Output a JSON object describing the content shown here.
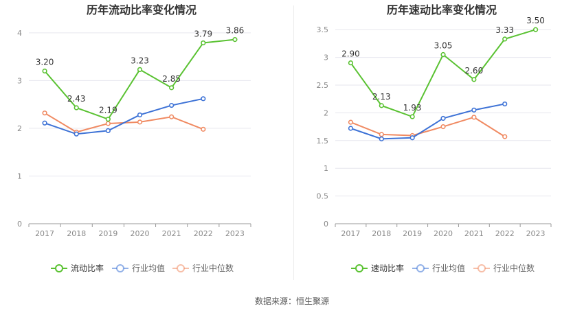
{
  "source": "数据来源：恒生聚源",
  "colors": {
    "main": "#5ac232",
    "industry_avg": "#3d72d6",
    "industry_median": "#f08a62",
    "grid": "#e6e6ee",
    "axis_text": "#888888",
    "title": "#333333"
  },
  "chart_data": [
    {
      "type": "line",
      "title": "历年流动比率变化情况",
      "categories": [
        "2017",
        "2018",
        "2019",
        "2020",
        "2021",
        "2022",
        "2023"
      ],
      "ylim": [
        0,
        4.3
      ],
      "yticks": [
        0,
        1,
        2,
        3,
        4
      ],
      "ytick_labels": [
        "0",
        "1",
        "2",
        "3",
        "4"
      ],
      "grid": true,
      "legend": "bottom",
      "series": [
        {
          "name": "流动比率",
          "color": "#5ac232",
          "values": [
            3.2,
            2.43,
            2.19,
            3.23,
            2.85,
            3.79,
            3.86
          ],
          "labels": [
            "3.20",
            "2.43",
            "2.19",
            "3.23",
            "2.85",
            "3.79",
            "3.86"
          ]
        },
        {
          "name": "行业均值",
          "color": "#3d72d6",
          "values": [
            2.11,
            1.88,
            1.95,
            2.28,
            2.48,
            2.62,
            null
          ]
        },
        {
          "name": "行业中位数",
          "color": "#f08a62",
          "values": [
            2.32,
            1.92,
            2.1,
            2.13,
            2.24,
            1.98,
            null
          ]
        }
      ]
    },
    {
      "type": "line",
      "title": "历年速动比率变化情况",
      "categories": [
        "2017",
        "2018",
        "2019",
        "2020",
        "2021",
        "2022",
        "2023"
      ],
      "ylim": [
        0,
        3.7
      ],
      "yticks": [
        0,
        0.5,
        1,
        1.5,
        2,
        2.5,
        3,
        3.5
      ],
      "ytick_labels": [
        "0",
        "0.5",
        "1",
        "1.5",
        "2",
        "2.5",
        "3",
        "3.5"
      ],
      "grid": true,
      "legend": "bottom",
      "series": [
        {
          "name": "速动比率",
          "color": "#5ac232",
          "values": [
            2.9,
            2.13,
            1.93,
            3.05,
            2.6,
            3.33,
            3.5
          ],
          "labels": [
            "2.90",
            "2.13",
            "1.93",
            "3.05",
            "2.60",
            "3.33",
            "3.50"
          ]
        },
        {
          "name": "行业均值",
          "color": "#3d72d6",
          "values": [
            1.72,
            1.53,
            1.55,
            1.9,
            2.05,
            2.16,
            null
          ]
        },
        {
          "name": "行业中位数",
          "color": "#f08a62",
          "values": [
            1.83,
            1.61,
            1.59,
            1.75,
            1.92,
            1.57,
            null
          ]
        }
      ]
    }
  ]
}
